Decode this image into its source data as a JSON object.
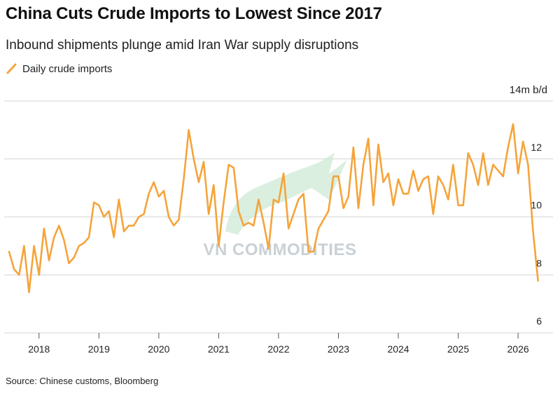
{
  "title": "China Cuts Crude Imports to Lowest Since 2017",
  "subtitle": "Inbound shipments plunge amid Iran War supply disruptions",
  "unit_label": "14m b/d",
  "source": "Source: Chinese customs, Bloomberg",
  "watermark": "VN COMMODITIES",
  "colors": {
    "line": "#f5a43a",
    "grid": "#d4d4d4",
    "text": "#222222"
  },
  "chart_data": {
    "type": "line",
    "series": [
      {
        "name": "Daily crude imports",
        "x": [
          "2017-07",
          "2017-08",
          "2017-09",
          "2017-10",
          "2017-11",
          "2017-12",
          "2018-01",
          "2018-02",
          "2018-03",
          "2018-04",
          "2018-05",
          "2018-06",
          "2018-07",
          "2018-08",
          "2018-09",
          "2018-10",
          "2018-11",
          "2018-12",
          "2019-01",
          "2019-02",
          "2019-03",
          "2019-04",
          "2019-05",
          "2019-06",
          "2019-07",
          "2019-08",
          "2019-09",
          "2019-10",
          "2019-11",
          "2019-12",
          "2020-01",
          "2020-02",
          "2020-03",
          "2020-04",
          "2020-05",
          "2020-06",
          "2020-07",
          "2020-08",
          "2020-09",
          "2020-10",
          "2020-11",
          "2020-12",
          "2021-01",
          "2021-02",
          "2021-03",
          "2021-04",
          "2021-05",
          "2021-06",
          "2021-07",
          "2021-08",
          "2021-09",
          "2021-10",
          "2021-11",
          "2021-12",
          "2022-01",
          "2022-02",
          "2022-03",
          "2022-04",
          "2022-05",
          "2022-06",
          "2022-07",
          "2022-08",
          "2022-09",
          "2022-10",
          "2022-11",
          "2022-12",
          "2023-01",
          "2023-02",
          "2023-03",
          "2023-04",
          "2023-05",
          "2023-06",
          "2023-07",
          "2023-08",
          "2023-09",
          "2023-10",
          "2023-11",
          "2023-12",
          "2024-01",
          "2024-02",
          "2024-03",
          "2024-04",
          "2024-05",
          "2024-06",
          "2024-07",
          "2024-08",
          "2024-09",
          "2024-10",
          "2024-11",
          "2024-12",
          "2025-01",
          "2025-02",
          "2025-03",
          "2025-04",
          "2025-05",
          "2025-06",
          "2025-07",
          "2025-08",
          "2025-09",
          "2025-10",
          "2025-11",
          "2025-12",
          "2026-01",
          "2026-02",
          "2026-03",
          "2026-04",
          "2026-05"
        ],
        "values": [
          8.8,
          8.2,
          8.0,
          9.0,
          7.4,
          9.0,
          8.0,
          9.6,
          8.5,
          9.3,
          9.7,
          9.2,
          8.4,
          8.6,
          9.0,
          9.1,
          9.3,
          10.5,
          10.4,
          10.0,
          10.2,
          9.3,
          10.6,
          9.5,
          9.7,
          9.7,
          10.0,
          10.1,
          10.8,
          11.2,
          10.7,
          10.9,
          10.0,
          9.7,
          9.9,
          11.3,
          13.0,
          12.0,
          11.2,
          11.9,
          10.1,
          11.1,
          9.0,
          10.5,
          11.8,
          11.7,
          10.2,
          9.7,
          9.8,
          9.7,
          10.6,
          9.8,
          8.9,
          10.6,
          10.5,
          11.5,
          9.6,
          10.1,
          10.6,
          10.8,
          8.8,
          8.8,
          9.6,
          9.9,
          10.2,
          11.4,
          11.4,
          10.3,
          10.7,
          12.4,
          10.3,
          11.8,
          12.7,
          10.4,
          12.5,
          11.2,
          11.5,
          10.4,
          11.3,
          10.8,
          10.8,
          11.6,
          10.9,
          11.3,
          11.4,
          10.1,
          11.4,
          11.1,
          10.6,
          11.8,
          10.4,
          10.4,
          12.2,
          11.8,
          11.1,
          12.2,
          11.1,
          11.8,
          11.6,
          11.4,
          12.4,
          13.2,
          11.5,
          12.6,
          11.8,
          9.5,
          7.8
        ]
      }
    ],
    "xlabel": "",
    "ylabel": "",
    "x_ticks": [
      "2018",
      "2019",
      "2020",
      "2021",
      "2022",
      "2023",
      "2024",
      "2025",
      "2026"
    ],
    "y_ticks": [
      6,
      8,
      10,
      12,
      14
    ],
    "y_tick_labels": [
      "6",
      "8",
      "10",
      "12",
      "14m b/d"
    ],
    "ylim": [
      6,
      14
    ],
    "xlim": [
      "2017-07",
      "2026-08"
    ],
    "grid": "horizontal",
    "y_axis_position": "right",
    "legend_position": "top-left"
  }
}
